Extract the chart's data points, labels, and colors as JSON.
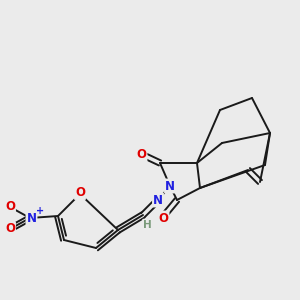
{
  "bg_color": "#ebebeb",
  "bond_color": "#1a1a1a",
  "atom_colors": {
    "O": "#e00000",
    "N": "#2020e0",
    "H": "#7a9a7a",
    "C": "#1a1a1a"
  },
  "figsize": [
    3.0,
    3.0
  ],
  "dpi": 100,
  "lw": 1.4
}
